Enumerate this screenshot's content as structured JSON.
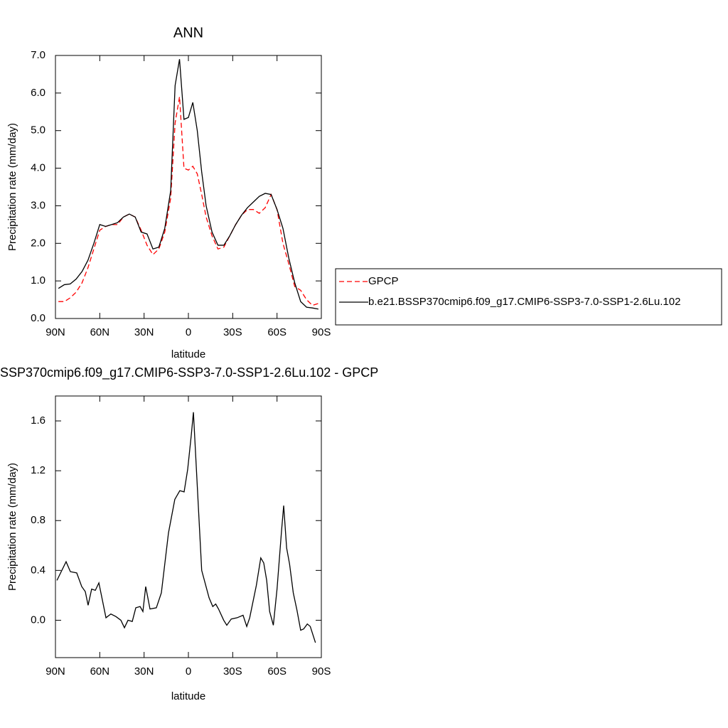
{
  "chart_data": [
    {
      "type": "line",
      "title": "ANN",
      "xlabel": "latitude",
      "ylabel": "Precipitation rate (mm/day)",
      "x": [
        88,
        84,
        80,
        76,
        72,
        68,
        64,
        60,
        56,
        52,
        48,
        44,
        40,
        36,
        32,
        28,
        24,
        20,
        16,
        12,
        9,
        6,
        3,
        0,
        -3,
        -6,
        -9,
        -12,
        -16,
        -20,
        -24,
        -28,
        -32,
        -36,
        -40,
        -44,
        -48,
        -52,
        -56,
        -60,
        -64,
        -68,
        -72,
        -76,
        -80,
        -84,
        -88
      ],
      "series": [
        {
          "name": "GPCP",
          "color": "#ff0000",
          "dash": true,
          "values": [
            0.45,
            0.45,
            0.55,
            0.7,
            0.95,
            1.35,
            1.85,
            2.35,
            2.45,
            2.5,
            2.5,
            2.7,
            2.78,
            2.7,
            2.35,
            1.95,
            1.7,
            1.85,
            2.3,
            3.2,
            5.2,
            5.9,
            4.0,
            3.95,
            4.05,
            3.85,
            3.3,
            2.7,
            2.2,
            1.85,
            1.9,
            2.2,
            2.5,
            2.75,
            2.9,
            2.9,
            2.8,
            2.95,
            3.3,
            2.9,
            2.0,
            1.45,
            0.85,
            0.75,
            0.5,
            0.35,
            0.4
          ]
        },
        {
          "name": "b.e21.BSSP370cmip6.f09_g17.CMIP6-SSP3-7.0-SSP1-2.6Lu.102",
          "color": "#000000",
          "dash": false,
          "values": [
            0.8,
            0.9,
            0.92,
            1.05,
            1.25,
            1.55,
            2.0,
            2.5,
            2.45,
            2.5,
            2.55,
            2.7,
            2.78,
            2.7,
            2.3,
            2.25,
            1.85,
            1.9,
            2.4,
            3.4,
            6.2,
            6.9,
            5.3,
            5.35,
            5.75,
            5.0,
            3.9,
            3.0,
            2.3,
            1.95,
            1.95,
            2.2,
            2.5,
            2.75,
            2.95,
            3.1,
            3.25,
            3.33,
            3.3,
            2.9,
            2.4,
            1.6,
            0.95,
            0.45,
            0.3,
            0.28,
            0.25
          ]
        }
      ],
      "xlim": [
        90,
        -90
      ],
      "xticks": [
        {
          "value": 90,
          "label": "90N"
        },
        {
          "value": 60,
          "label": "60N"
        },
        {
          "value": 30,
          "label": "30N"
        },
        0,
        {
          "value": -30,
          "label": "30S"
        },
        {
          "value": -60,
          "label": "60S"
        },
        {
          "value": -90,
          "label": "90S"
        }
      ],
      "ylim": [
        0,
        7
      ],
      "yticks": [
        {
          "value": 0,
          "label": "0.0"
        },
        {
          "value": 1,
          "label": "1.0"
        },
        {
          "value": 2,
          "label": "2.0"
        },
        {
          "value": 3,
          "label": "3.0"
        },
        {
          "value": 4,
          "label": "4.0"
        },
        {
          "value": 5,
          "label": "5.0"
        },
        {
          "value": 6,
          "label": "6.0"
        },
        {
          "value": 7,
          "label": "7.0"
        }
      ],
      "legend": "right"
    },
    {
      "type": "line",
      "title": "SSP370cmip6.f09_g17.CMIP6-SSP3-7.0-SSP1-2.6Lu.102 - GPCP",
      "xlabel": "latitude",
      "ylabel": "Precipitation rate (mm/day)",
      "x": [
        89,
        82.8,
        79.9,
        75.6,
        72.2,
        69.8,
        67.9,
        65.5,
        63,
        60.6,
        55.8,
        52.5,
        49.1,
        45.7,
        43.3,
        40.9,
        38,
        35.6,
        32.7,
        30.8,
        28.9,
        26,
        21.7,
        18.3,
        13.5,
        9.2,
        5.8,
        2.9,
        0.5,
        -1.9,
        -3.4,
        -9,
        -14,
        -16.5,
        -18.5,
        -20.4,
        -23.9,
        -26,
        -29,
        -33,
        -37,
        -39.5,
        -41.5,
        -46,
        -49,
        -51,
        -53,
        -55,
        -57.5,
        -60,
        -63,
        -64.5,
        -66.5,
        -68.5,
        -71,
        -73.5,
        -76,
        -78,
        -80.5,
        -82.5,
        -86
      ],
      "values": [
        0.32,
        0.47,
        0.39,
        0.38,
        0.27,
        0.23,
        0.12,
        0.25,
        0.24,
        0.3,
        0.02,
        0.05,
        0.03,
        0.0,
        -0.06,
        0.0,
        -0.01,
        0.1,
        0.11,
        0.07,
        0.27,
        0.09,
        0.1,
        0.22,
        0.7,
        0.97,
        1.04,
        1.03,
        1.21,
        1.48,
        1.67,
        0.4,
        0.18,
        0.11,
        0.13,
        0.09,
        0.0,
        -0.04,
        0.01,
        0.02,
        0.04,
        -0.05,
        0.02,
        0.28,
        0.5,
        0.46,
        0.32,
        0.07,
        -0.04,
        0.25,
        0.71,
        0.92,
        0.58,
        0.45,
        0.22,
        0.08,
        -0.08,
        -0.07,
        -0.03,
        -0.05,
        -0.18
      ],
      "color": "#000000",
      "xlim": [
        90,
        -90
      ],
      "xticks": [
        {
          "value": 90,
          "label": "90N"
        },
        {
          "value": 60,
          "label": "60N"
        },
        {
          "value": 30,
          "label": "30N"
        },
        0,
        {
          "value": -30,
          "label": "30S"
        },
        {
          "value": -60,
          "label": "60S"
        },
        {
          "value": -90,
          "label": "90S"
        }
      ],
      "ylim": [
        -0.3,
        1.8
      ],
      "yticks": [
        {
          "value": 0,
          "label": "0.0"
        },
        {
          "value": 0.4,
          "label": "0.4"
        },
        {
          "value": 0.8,
          "label": "0.8"
        },
        {
          "value": 1.2,
          "label": "1.2"
        },
        {
          "value": 1.6,
          "label": "1.6"
        }
      ]
    }
  ]
}
